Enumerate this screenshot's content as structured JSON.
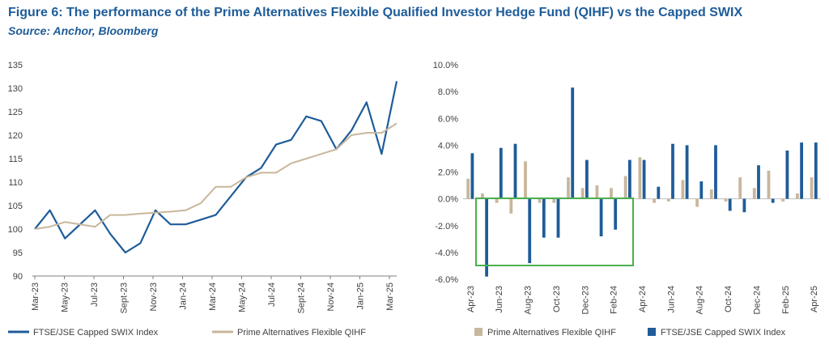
{
  "figure": {
    "title": "Figure 6: The performance of the Prime Alternatives Flexible Qualified Investor Hedge Fund (QIHF) vs the Capped SWIX",
    "source": "Source: Anchor, Bloomberg"
  },
  "colors": {
    "swix": "#1f5c99",
    "qihf": "#c8b79c",
    "highlight": "#4caf50"
  },
  "chart_data": [
    {
      "type": "line",
      "title": "",
      "xlabel": "",
      "ylabel": "",
      "x_ticks": [
        "Mar-23",
        "May-23",
        "Jul-23",
        "Sept-23",
        "Nov-23",
        "Jan-24",
        "Mar-24",
        "May-24",
        "Jul-24",
        "Sept-24",
        "Nov-24",
        "Jan-25",
        "Mar-25"
      ],
      "y_ticks": [
        "135",
        "130",
        "125",
        "120",
        "115",
        "110",
        "105",
        "100",
        "95",
        "90"
      ],
      "ylim": [
        90,
        135
      ],
      "x": [
        "Mar-23",
        "Apr-23",
        "May-23",
        "Jun-23",
        "Jul-23",
        "Aug-23",
        "Sept-23",
        "Oct-23",
        "Nov-23",
        "Dec-23",
        "Jan-24",
        "Feb-24",
        "Mar-24",
        "Apr-24",
        "May-24",
        "Jun-24",
        "Jul-24",
        "Aug-24",
        "Sept-24",
        "Oct-24",
        "Nov-24",
        "Dec-24",
        "Jan-25",
        "Feb-25",
        "Mar-25"
      ],
      "series": [
        {
          "name": "FTSE/JSE Capped SWIX Index",
          "values": [
            100,
            104,
            98,
            101,
            104,
            99,
            95,
            97,
            104,
            101,
            101,
            102,
            103,
            107,
            111,
            113,
            118,
            119,
            124,
            123,
            117,
            121,
            127,
            116,
            131.5
          ]
        },
        {
          "name": "Prime Alternatives Flexible QIHF",
          "values": [
            100,
            100.5,
            101.5,
            101,
            100.5,
            103,
            103,
            103.3,
            103.5,
            103.7,
            104,
            105.5,
            109,
            109,
            111,
            112,
            112,
            114,
            115,
            116,
            117,
            120,
            120.5,
            120.5,
            122.5
          ]
        }
      ],
      "legend": "bottom"
    },
    {
      "type": "bar",
      "title": "",
      "xlabel": "",
      "ylabel": "",
      "x_ticks": [
        "Apr-23",
        "Jun-23",
        "Aug-23",
        "Oct-23",
        "Dec-23",
        "Feb-24",
        "Apr-24",
        "Jun-24",
        "Aug-24",
        "Oct-24",
        "Dec-24",
        "Feb-25",
        "Apr-25"
      ],
      "y_ticks": [
        "10.0%",
        "8.0%",
        "6.0%",
        "4.0%",
        "2.0%",
        "0.0%",
        "-2.0%",
        "-4.0%",
        "-6.0%"
      ],
      "ylim": [
        -6,
        10
      ],
      "categories": [
        "Apr-23",
        "May-23",
        "Jun-23",
        "Jul-23",
        "Aug-23",
        "Sep-23",
        "Oct-23",
        "Nov-23",
        "Dec-23",
        "Jan-24",
        "Feb-24",
        "Mar-24",
        "Apr-24",
        "May-24",
        "Jun-24",
        "Jul-24",
        "Aug-24",
        "Sep-24",
        "Oct-24",
        "Nov-24",
        "Dec-24",
        "Jan-25",
        "Feb-25",
        "Mar-25",
        "Apr-25"
      ],
      "series": [
        {
          "name": "Prime Alternatives Flexible QIHF",
          "values": [
            1.5,
            0.4,
            -0.3,
            -1.1,
            2.8,
            -0.3,
            -0.3,
            1.6,
            0.8,
            1.0,
            0.8,
            1.7,
            3.1,
            -0.3,
            -0.2,
            1.4,
            -0.6,
            0.7,
            -0.2,
            1.6,
            0.8,
            2.1,
            -0.2,
            0.4,
            1.6
          ]
        },
        {
          "name": "FTSE/JSE Capped SWIX Index",
          "values": [
            3.4,
            -5.8,
            3.8,
            4.1,
            -4.8,
            -2.9,
            -2.9,
            8.3,
            2.9,
            -2.8,
            -2.3,
            2.9,
            2.9,
            0.9,
            4.1,
            4.0,
            1.3,
            4.0,
            -0.9,
            -1.0,
            2.5,
            -0.3,
            3.6,
            4.2,
            4.2
          ]
        }
      ],
      "legend": "bottom"
    }
  ]
}
